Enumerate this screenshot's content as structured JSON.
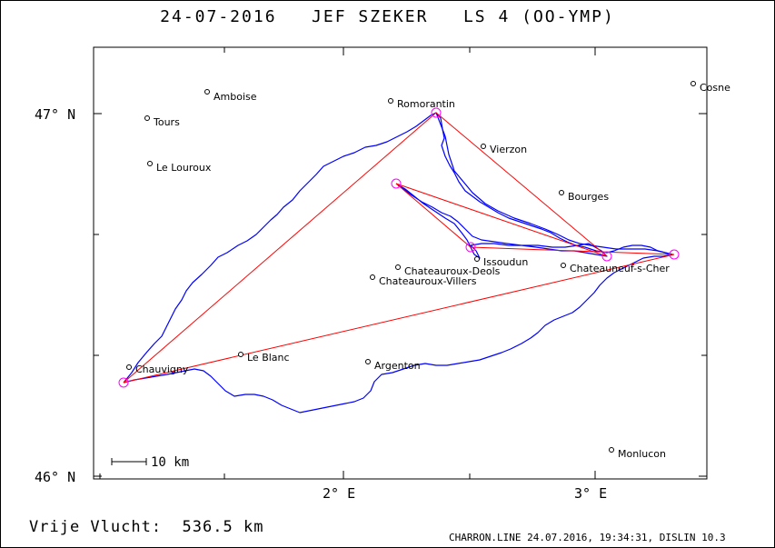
{
  "title": {
    "date": "24-07-2016",
    "pilot": "JEF SZEKER",
    "glider": "LS 4 (OO-YMP)"
  },
  "axes": {
    "y_labels": [
      "47° N",
      "46° N"
    ],
    "x_labels": [
      "2° E",
      "3° E"
    ],
    "scale_bar": "10 km"
  },
  "places": [
    {
      "name": "Amboise"
    },
    {
      "name": "Tours"
    },
    {
      "name": "Le Louroux"
    },
    {
      "name": "Romorantin"
    },
    {
      "name": "Vierzon"
    },
    {
      "name": "Bourges"
    },
    {
      "name": "Cosne"
    },
    {
      "name": "Issoudun"
    },
    {
      "name": "Chateauroux-Deols"
    },
    {
      "name": "Chateauroux-Villers"
    },
    {
      "name": "Chateauneuf-s-Cher"
    },
    {
      "name": "Le Blanc"
    },
    {
      "name": "Chauvigny"
    },
    {
      "name": "Argenton"
    },
    {
      "name": "Monlucon"
    }
  ],
  "footer": {
    "distance_label": "Vrije Vlucht:",
    "distance_value": "536.5 km",
    "software": "CHARRON.LINE 24.07.2016, 19:34:31, DISLIN 10.3"
  },
  "colors": {
    "track": "#0000ff",
    "task": "#ff0000",
    "turnpoint": "#ff00ff"
  }
}
